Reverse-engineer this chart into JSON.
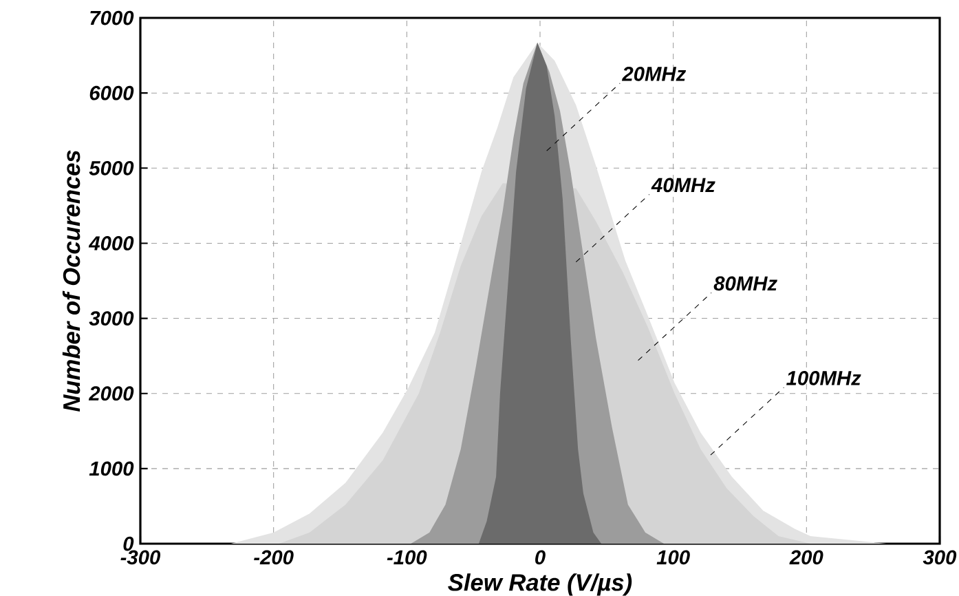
{
  "chart_data": {
    "type": "area",
    "xlabel": "Slew Rate (V/µs)",
    "ylabel": "Number of Occurences",
    "xlim": [
      -300,
      300
    ],
    "ylim": [
      0,
      7000
    ],
    "xticks": [
      -300,
      -200,
      -100,
      0,
      100,
      200,
      300
    ],
    "yticks": [
      0,
      1000,
      2000,
      3000,
      4000,
      5000,
      6000,
      7000
    ],
    "grid": true,
    "series": [
      {
        "color": "#6b6b6b",
        "x": [
          -46,
          -40,
          -33,
          -30,
          -24,
          -18,
          -10.5,
          -2,
          5,
          11,
          17,
          23,
          28.5,
          32.5,
          40,
          46
        ],
        "values": [
          0,
          300,
          890,
          2000,
          3470,
          4950,
          6060,
          6670,
          6360,
          5690,
          4580,
          2730,
          1260,
          670,
          150,
          0
        ]
      },
      {
        "color": "#9c9c9c",
        "x": [
          -97,
          -83,
          -71,
          -59.5,
          -48,
          -36,
          -28,
          -20,
          -12.5,
          -2,
          7,
          15,
          23,
          30.5,
          42,
          54,
          66,
          79,
          93
        ],
        "values": [
          0,
          150,
          520,
          1260,
          2370,
          3620,
          4430,
          5400,
          6130,
          6670,
          6280,
          5760,
          4950,
          4070,
          2730,
          1550,
          520,
          150,
          0
        ]
      },
      {
        "color": "#d4d4d4",
        "x": [
          -196,
          -173,
          -146,
          -118,
          -91,
          -75,
          -59.5,
          -44,
          -28,
          27,
          42,
          62,
          81,
          101,
          120.5,
          140,
          160,
          179,
          203
        ],
        "values": [
          0,
          150,
          520,
          1110,
          2000,
          2810,
          3700,
          4360,
          4800,
          4730,
          4290,
          3620,
          2880,
          2000,
          1260,
          740,
          370,
          100,
          0
        ]
      },
      {
        "color": "#e3e3e3",
        "x": [
          -232,
          -200,
          -173,
          -146,
          -118,
          -99,
          -79,
          -59.5,
          -44,
          -32,
          -20,
          -2,
          11,
          27,
          42,
          64,
          81,
          101,
          120.5,
          144,
          167.5,
          191,
          203,
          260
        ],
        "values": [
          0,
          150,
          400,
          810,
          1480,
          2070,
          2810,
          3990,
          4950,
          5540,
          6210,
          6670,
          6430,
          5840,
          5030,
          3770,
          3030,
          2140,
          1480,
          890,
          440,
          200,
          100,
          0
        ]
      }
    ],
    "annotations": [
      "20MHz",
      "40MHz",
      "80MHz",
      {
        "text": "100MHz",
        "x": 128,
        "y": 1180
      }
    ]
  }
}
